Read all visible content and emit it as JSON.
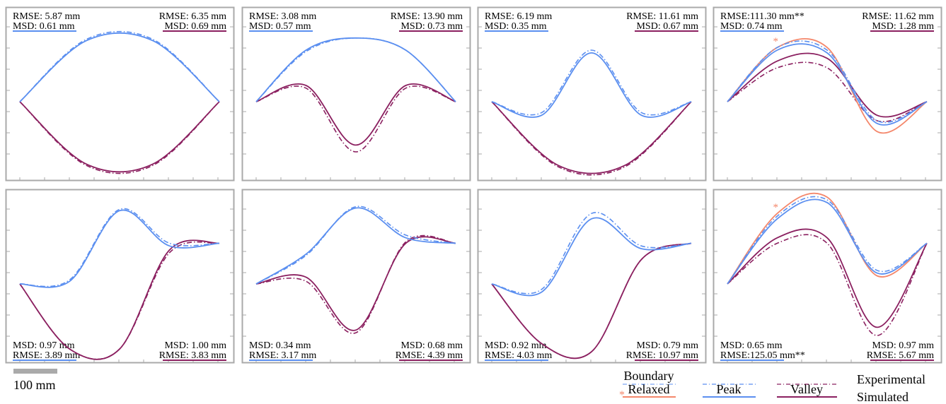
{
  "colors": {
    "peak": "#5B8FF0",
    "valley": "#8B2060",
    "relaxed": "#F4876B",
    "frame": "#AAAAAA",
    "scalebar": "#AAAAAA"
  },
  "scale_bar": {
    "label": "100 mm"
  },
  "legend": {
    "boundary": "Boundary",
    "relaxed": "Relaxed",
    "peak": "Peak",
    "valley": "Valley",
    "experimental": "Experimental",
    "simulated": "Simulated",
    "marker": "*"
  },
  "chart_data": [
    {
      "type": "line",
      "panel": "row1-col1",
      "stats_position": "top",
      "left": {
        "rmse": "RMSE: 5.87 mm",
        "msd": "MSD: 0.61 mm"
      },
      "right": {
        "rmse": "RMSE: 6.35 mm",
        "msd": "MSD: 0.69 mm"
      },
      "has_relaxed": false,
      "start": 0.5,
      "end": 0.5,
      "peak": {
        "sim": [
          [
            0.5,
            0.5
          ],
          [
            0.35,
            0.05
          ],
          [
            0.33,
            0.05
          ],
          [
            0.5,
            0.5
          ]
        ],
        "exp": [
          [
            0.5,
            0.5
          ],
          [
            0.35,
            0.04
          ],
          [
            0.34,
            0.04
          ],
          [
            0.5,
            0.5
          ]
        ]
      },
      "valley": {
        "sim": [
          [
            0.5,
            0.5
          ],
          [
            0.35,
            0.96
          ],
          [
            0.33,
            0.96
          ],
          [
            0.5,
            0.5
          ]
        ],
        "exp": [
          [
            0.5,
            0.5
          ],
          [
            0.35,
            0.97
          ],
          [
            0.34,
            0.97
          ],
          [
            0.5,
            0.5
          ]
        ]
      }
    },
    {
      "type": "line",
      "panel": "row1-col2",
      "stats_position": "top",
      "left": {
        "rmse": "RMSE: 3.08 mm",
        "msd": "MSD: 0.57 mm"
      },
      "right": {
        "rmse": "RMSE: 13.90 mm",
        "msd": "MSD: 0.73 mm"
      },
      "has_relaxed": false,
      "start": 0.5,
      "end": 0.5,
      "peak": {
        "sim": [
          [
            0.5,
            0.5
          ],
          [
            0.2,
            0.12
          ],
          [
            0.5,
            0.03
          ],
          [
            0.8,
            0.12
          ],
          [
            0.5,
            0.5
          ]
        ],
        "exp": [
          [
            0.5,
            0.5
          ],
          [
            0.2,
            0.13
          ],
          [
            0.5,
            0.03
          ],
          [
            0.8,
            0.12
          ],
          [
            0.5,
            0.5
          ]
        ]
      },
      "valley": {
        "sim": [
          [
            0.5,
            0.5
          ],
          [
            0.2,
            0.38
          ],
          [
            0.5,
            0.82
          ],
          [
            0.8,
            0.38
          ],
          [
            0.5,
            0.5
          ]
        ],
        "exp": [
          [
            0.5,
            0.5
          ],
          [
            0.2,
            0.4
          ],
          [
            0.5,
            0.87
          ],
          [
            0.8,
            0.4
          ],
          [
            0.5,
            0.5
          ]
        ]
      }
    },
    {
      "type": "line",
      "panel": "row1-col3",
      "stats_position": "top",
      "left": {
        "rmse": "RMSE: 6.19 mm",
        "msd": "MSD: 0.35 mm"
      },
      "right": {
        "rmse": "RMSE: 11.61 mm",
        "msd": "MSD: 0.67 mm"
      },
      "has_relaxed": false,
      "start": 0.5,
      "end": 0.5,
      "peak": {
        "sim": [
          [
            0.5,
            0.5
          ],
          [
            0.1,
            0.6
          ],
          [
            0.22,
            0.14
          ],
          [
            0.58,
            0.6
          ],
          [
            0.5,
            0.5
          ]
        ],
        "exp": [
          [
            0.5,
            0.5
          ],
          [
            0.1,
            0.58
          ],
          [
            0.22,
            0.12
          ],
          [
            0.58,
            0.58
          ],
          [
            0.5,
            0.5
          ]
        ]
      },
      "valley": {
        "sim": [
          [
            0.5,
            0.5
          ],
          [
            0.18,
            0.97
          ],
          [
            0.18,
            0.97
          ],
          [
            0.5,
            0.5
          ]
        ],
        "exp": [
          [
            0.5,
            0.5
          ],
          [
            0.22,
            0.98
          ],
          [
            0.18,
            0.98
          ],
          [
            0.5,
            0.5
          ]
        ]
      }
    },
    {
      "type": "line",
      "panel": "row1-col4",
      "stats_position": "top",
      "left": {
        "rmse": "RMSE:111.30 mm**",
        "msd": "MSD: 0.74 mm"
      },
      "right": {
        "rmse": "RMSE: 11.62 mm",
        "msd": "MSD: 1.28 mm"
      },
      "has_relaxed": true,
      "start": 0.5,
      "end": 0.5,
      "peak": {
        "sim": [
          [
            0.5,
            0.5
          ],
          [
            0.12,
            0.12
          ],
          [
            0.45,
            0.14
          ],
          [
            0.7,
            0.66
          ],
          [
            0.5,
            0.5
          ]
        ],
        "exp": [
          [
            0.5,
            0.5
          ],
          [
            0.12,
            0.1
          ],
          [
            0.45,
            0.12
          ],
          [
            0.72,
            0.64
          ],
          [
            0.5,
            0.5
          ]
        ],
        "relaxed": [
          [
            0.5,
            0.5
          ],
          [
            0.12,
            0.1
          ],
          [
            0.45,
            0.1
          ],
          [
            0.66,
            0.72
          ],
          [
            0.5,
            0.5
          ]
        ]
      },
      "valley": {
        "sim": [
          [
            0.5,
            0.5
          ],
          [
            0.14,
            0.2
          ],
          [
            0.3,
            0.18
          ],
          [
            0.74,
            0.6
          ],
          [
            0.5,
            0.5
          ]
        ],
        "exp": [
          [
            0.5,
            0.5
          ],
          [
            0.14,
            0.25
          ],
          [
            0.33,
            0.25
          ],
          [
            0.74,
            0.64
          ],
          [
            0.5,
            0.5
          ]
        ]
      }
    },
    {
      "type": "line",
      "panel": "row2-col1",
      "stats_position": "bottom",
      "left": {
        "msd": "MSD: 0.97 mm",
        "rmse": "RMSE: 3.89 mm"
      },
      "right": {
        "msd": "MSD: 1.00 mm",
        "rmse": "RMSE: 3.83 mm"
      },
      "has_relaxed": false,
      "start": 0.5,
      "end": 0.2,
      "peak": {
        "sim": [
          [
            0.5,
            0.5
          ],
          [
            0.25,
            0.48
          ],
          [
            0.35,
            -0.04
          ],
          [
            0.65,
            0.22
          ],
          [
            0.5,
            0.2
          ]
        ],
        "exp": [
          [
            0.5,
            0.5
          ],
          [
            0.25,
            0.47
          ],
          [
            0.35,
            -0.05
          ],
          [
            0.65,
            0.2
          ],
          [
            0.5,
            0.2
          ]
        ]
      },
      "valley": {
        "sim": [
          [
            0.5,
            0.5
          ],
          [
            0.25,
            0.98
          ],
          [
            0.37,
            0.98
          ],
          [
            0.68,
            0.25
          ],
          [
            0.5,
            0.2
          ]
        ],
        "exp": [
          [
            0.5,
            0.5
          ],
          [
            0.22,
            0.98
          ],
          [
            0.37,
            0.98
          ],
          [
            0.68,
            0.27
          ],
          [
            0.5,
            0.2
          ]
        ]
      }
    },
    {
      "type": "line",
      "panel": "row2-col2",
      "stats_position": "bottom",
      "left": {
        "msd": "MSD: 0.34 mm",
        "rmse": "RMSE: 3.17 mm"
      },
      "right": {
        "msd": "MSD: 0.68 mm",
        "rmse": "RMSE: 4.39 mm"
      },
      "has_relaxed": false,
      "start": 0.5,
      "end": 0.2,
      "peak": {
        "sim": [
          [
            0.5,
            0.5
          ],
          [
            0.16,
            0.28
          ],
          [
            0.4,
            -0.06
          ],
          [
            0.78,
            0.16
          ],
          [
            0.5,
            0.2
          ]
        ],
        "exp": [
          [
            0.5,
            0.5
          ],
          [
            0.16,
            0.29
          ],
          [
            0.4,
            -0.07
          ],
          [
            0.8,
            0.14
          ],
          [
            0.5,
            0.2
          ]
        ]
      },
      "valley": {
        "sim": [
          [
            0.5,
            0.5
          ],
          [
            0.16,
            0.45
          ],
          [
            0.4,
            0.84
          ],
          [
            0.7,
            0.2
          ],
          [
            0.5,
            0.2
          ]
        ],
        "exp": [
          [
            0.5,
            0.5
          ],
          [
            0.16,
            0.48
          ],
          [
            0.42,
            0.86
          ],
          [
            0.7,
            0.19
          ],
          [
            0.5,
            0.2
          ]
        ]
      }
    },
    {
      "type": "line",
      "panel": "row2-col3",
      "stats_position": "bottom",
      "left": {
        "msd": "MSD: 0.92 mm",
        "rmse": "RMSE: 4.03 mm"
      },
      "right": {
        "msd": "MSD: 0.79 mm",
        "rmse": "RMSE: 10.97 mm"
      },
      "has_relaxed": false,
      "start": 0.5,
      "end": 0.2,
      "peak": {
        "sim": [
          [
            0.5,
            0.5
          ],
          [
            0.18,
            0.56
          ],
          [
            0.22,
            0.02
          ],
          [
            0.66,
            0.24
          ],
          [
            0.5,
            0.2
          ]
        ],
        "exp": [
          [
            0.5,
            0.5
          ],
          [
            0.18,
            0.54
          ],
          [
            0.22,
            -0.02
          ],
          [
            0.66,
            0.22
          ],
          [
            0.5,
            0.2
          ]
        ]
      },
      "valley": {
        "sim": [
          [
            0.5,
            0.5
          ],
          [
            0.24,
            0.94
          ],
          [
            0.4,
            1.0
          ],
          [
            0.66,
            0.32
          ],
          [
            0.5,
            0.2
          ]
        ],
        "exp": [
          [
            0.5,
            0.5
          ],
          [
            0.2,
            0.94
          ],
          [
            0.4,
            1.0
          ],
          [
            0.66,
            0.32
          ],
          [
            0.5,
            0.2
          ]
        ]
      }
    },
    {
      "type": "line",
      "panel": "row2-col4",
      "stats_position": "bottom",
      "left": {
        "msd": "MSD: 0.65 mm",
        "rmse": "RMSE:125.05 mm**"
      },
      "right": {
        "msd": "MSD: 0.97 mm",
        "rmse": "RMSE: 5.67 mm"
      },
      "has_relaxed": true,
      "start": 0.5,
      "end": 0.2,
      "peak": {
        "sim": [
          [
            0.5,
            0.5
          ],
          [
            0.08,
            0.02
          ],
          [
            0.5,
            -0.1
          ],
          [
            0.72,
            0.42
          ],
          [
            0.5,
            0.2
          ]
        ],
        "exp": [
          [
            0.5,
            0.5
          ],
          [
            0.08,
            0.0
          ],
          [
            0.5,
            -0.12
          ],
          [
            0.74,
            0.4
          ],
          [
            0.5,
            0.2
          ]
        ],
        "relaxed": [
          [
            0.5,
            0.5
          ],
          [
            0.08,
            -0.02
          ],
          [
            0.5,
            -0.14
          ],
          [
            0.7,
            0.44
          ],
          [
            0.5,
            0.2
          ]
        ]
      },
      "valley": {
        "sim": [
          [
            0.5,
            0.5
          ],
          [
            0.14,
            0.16
          ],
          [
            0.36,
            0.16
          ],
          [
            0.72,
            0.82
          ],
          [
            0.5,
            0.2
          ]
        ],
        "exp": [
          [
            0.5,
            0.5
          ],
          [
            0.14,
            0.2
          ],
          [
            0.36,
            0.2
          ],
          [
            0.74,
            0.88
          ],
          [
            0.5,
            0.2
          ]
        ]
      }
    }
  ]
}
